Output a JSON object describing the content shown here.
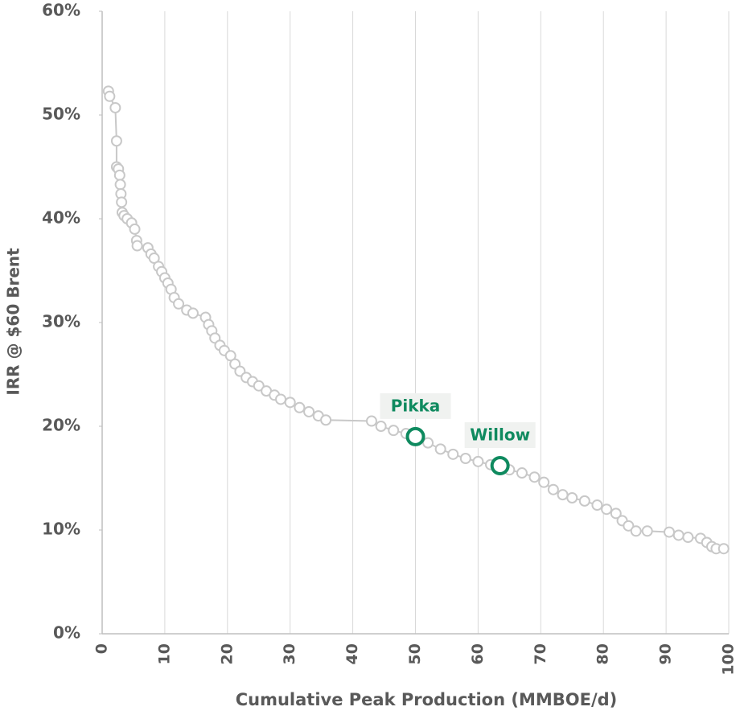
{
  "chart_data": {
    "type": "scatter",
    "xlabel": "Cumulative  Peak Production  (MMBOE/d)",
    "ylabel": "IRR @ $60 Brent",
    "xlim": [
      0,
      100
    ],
    "ylim": [
      0,
      60
    ],
    "xticks": [
      0,
      10,
      20,
      30,
      40,
      50,
      60,
      70,
      80,
      90,
      100
    ],
    "yticks": [
      {
        "value": 0,
        "label": "0%"
      },
      {
        "value": 10,
        "label": "10%"
      },
      {
        "value": 20,
        "label": "20%"
      },
      {
        "value": 30,
        "label": "30%"
      },
      {
        "value": 40,
        "label": "40%"
      },
      {
        "value": 50,
        "label": "50%"
      },
      {
        "value": 60,
        "label": "60%"
      }
    ],
    "grid": "x",
    "series": [
      {
        "color": "#c8c8c8",
        "x": [
          1.0,
          1.2,
          2.1,
          2.3,
          2.3,
          2.6,
          2.8,
          2.9,
          3.0,
          3.1,
          3.2,
          3.5,
          4.0,
          4.7,
          5.2,
          5.5,
          5.6,
          7.3,
          7.8,
          8.3,
          9.0,
          9.5,
          10.0,
          10.5,
          11.0,
          11.5,
          12.2,
          13.5,
          14.5,
          16.5,
          17.0,
          17.5,
          18.0,
          18.8,
          19.5,
          20.5,
          21.2,
          22.0,
          23.0,
          24.0,
          25.0,
          26.2,
          27.5,
          28.5,
          30.0,
          31.5,
          33.0,
          34.5,
          35.7,
          43.0,
          44.5,
          46.5,
          48.5,
          52.0,
          54.0,
          56.0,
          58.0,
          60.0,
          62.0,
          65.0,
          67.0,
          69.0,
          70.5,
          72.0,
          73.5,
          75.0,
          77.0,
          79.0,
          80.5,
          82.0,
          83.0,
          84.0,
          85.2,
          87.0,
          90.5,
          92.0,
          93.5,
          95.5,
          96.5,
          97.3,
          98.0,
          99.2
        ],
        "y": [
          52.3,
          51.8,
          50.7,
          47.5,
          45.0,
          44.8,
          44.2,
          43.3,
          42.4,
          41.6,
          40.6,
          40.3,
          40.0,
          39.6,
          39.0,
          37.9,
          37.4,
          37.2,
          36.6,
          36.2,
          35.4,
          34.9,
          34.3,
          33.8,
          33.2,
          32.4,
          31.8,
          31.2,
          30.9,
          30.5,
          29.8,
          29.2,
          28.5,
          27.8,
          27.3,
          26.8,
          26.0,
          25.3,
          24.7,
          24.3,
          23.9,
          23.4,
          23.0,
          22.6,
          22.3,
          21.8,
          21.4,
          21.0,
          20.6,
          20.5,
          20.0,
          19.6,
          19.3,
          18.4,
          17.8,
          17.3,
          16.9,
          16.6,
          16.3,
          15.8,
          15.5,
          15.1,
          14.6,
          13.9,
          13.4,
          13.1,
          12.8,
          12.4,
          12.0,
          11.6,
          10.9,
          10.4,
          9.9,
          9.9,
          9.8,
          9.5,
          9.3,
          9.2,
          8.8,
          8.4,
          8.2,
          8.2
        ]
      },
      {
        "name": "Pikka",
        "color": "#0f8a5f",
        "x": [
          50.0
        ],
        "y": [
          19.0
        ]
      },
      {
        "name": "Willow",
        "color": "#0f8a5f",
        "x": [
          63.5
        ],
        "y": [
          16.2
        ]
      }
    ]
  }
}
